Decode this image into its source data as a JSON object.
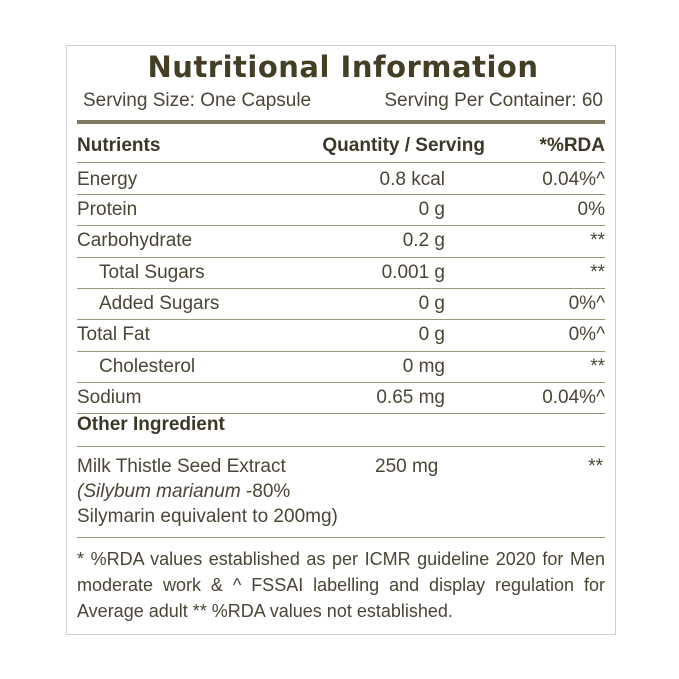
{
  "title": "Nutritional Information",
  "serving_size": "Serving Size: One Capsule",
  "servings_per_container": "Serving Per Container: 60",
  "header": {
    "nutrients": "Nutrients",
    "quantity": "Quantity / Serving",
    "rda": "*%RDA"
  },
  "rows": [
    {
      "name": "Energy",
      "qty": "0.8 kcal",
      "rda": "0.04%^"
    },
    {
      "name": "Protein",
      "qty": "0 g",
      "rda": "0%"
    },
    {
      "name": "Carbohydrate",
      "qty": "0.2 g",
      "rda": "**"
    },
    {
      "name": "Total Sugars",
      "qty": "0.001 g",
      "rda": "**"
    },
    {
      "name": "Added Sugars",
      "qty": "0 g",
      "rda": "0%^"
    },
    {
      "name": "Total Fat",
      "qty": "0 g",
      "rda": "0%^"
    },
    {
      "name": "Cholesterol",
      "qty": "0 mg",
      "rda": "**"
    },
    {
      "name": "Sodium",
      "qty": "0.65 mg",
      "rda": "0.04%^"
    }
  ],
  "other_heading": "Other Ingredient",
  "ingredient": {
    "line1": "Milk Thistle Seed Extract",
    "line2_italic": "(Silybum marianum",
    "line2_rest": " -80%",
    "line3": "Silymarin equivalent to 200mg)",
    "qty": "250 mg",
    "rda": "**"
  },
  "footnote": "* %RDA values established as per ICMR guideline 2020 for Men moderate work & ^ FSSAI labelling and display regulation for Average adult    ** %RDA values not established."
}
